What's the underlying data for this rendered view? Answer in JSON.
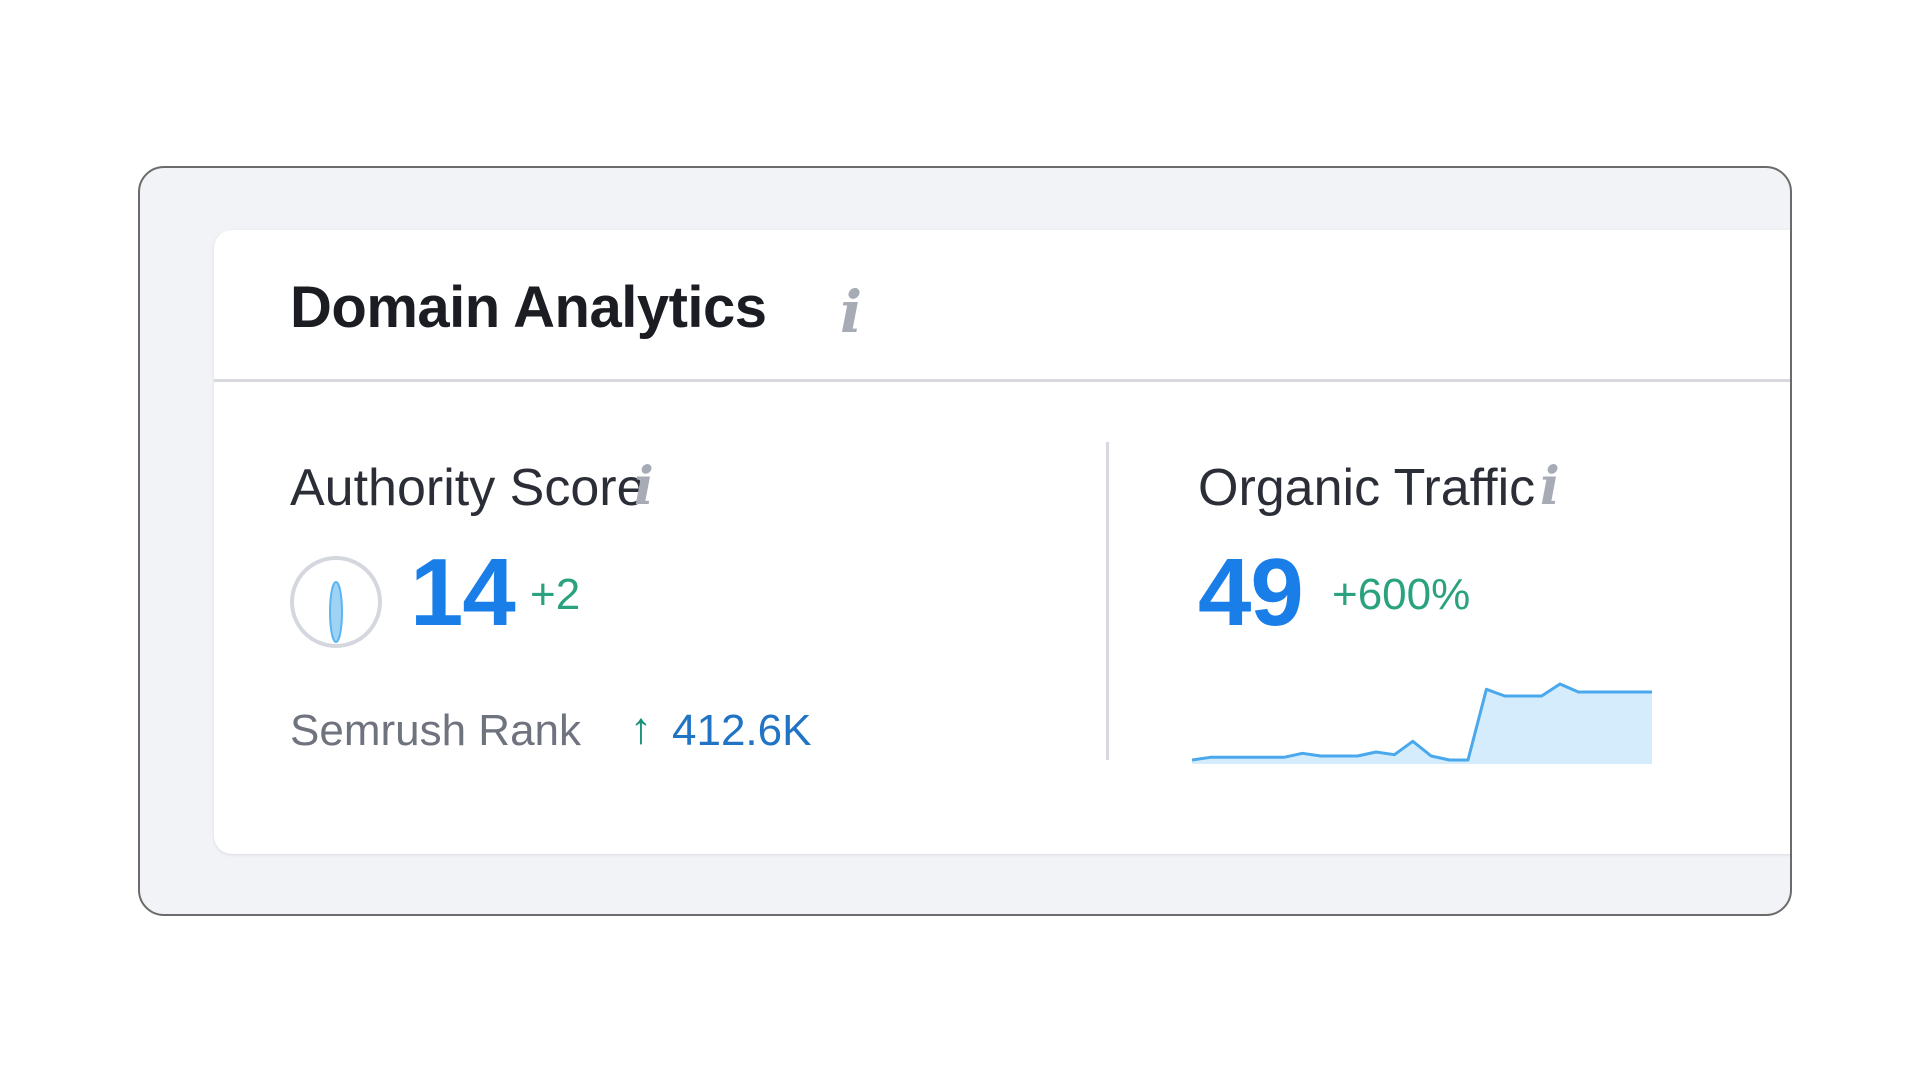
{
  "card": {
    "title": "Domain Analytics",
    "title_info_icon": "info-icon"
  },
  "authority": {
    "label": "Authority Score",
    "info_icon": "info-icon",
    "value": "14",
    "delta": "+2",
    "gauge_fraction": 0.14,
    "rank_label": "Semrush Rank",
    "rank_arrow_icon": "arrow-up-icon",
    "rank_arrow": "↑",
    "rank_value": "412.6K"
  },
  "organic": {
    "label": "Organic Traffic",
    "info_icon": "info-icon",
    "value": "49",
    "delta": "+600%",
    "trend": [
      0,
      2,
      2,
      2,
      2,
      2,
      5,
      3,
      3,
      3,
      6,
      4,
      14,
      3,
      0,
      0,
      53,
      48,
      48,
      48,
      57,
      51,
      51,
      51,
      51,
      51
    ]
  },
  "info_glyph": "i",
  "colors": {
    "accent": "#1a7ee8",
    "positive": "#2ba27f",
    "rank_value": "#2173c4",
    "spark_line": "#4aa8ec",
    "spark_fill": "#d4ecfb",
    "frame_bg": "#f1f3f7"
  }
}
